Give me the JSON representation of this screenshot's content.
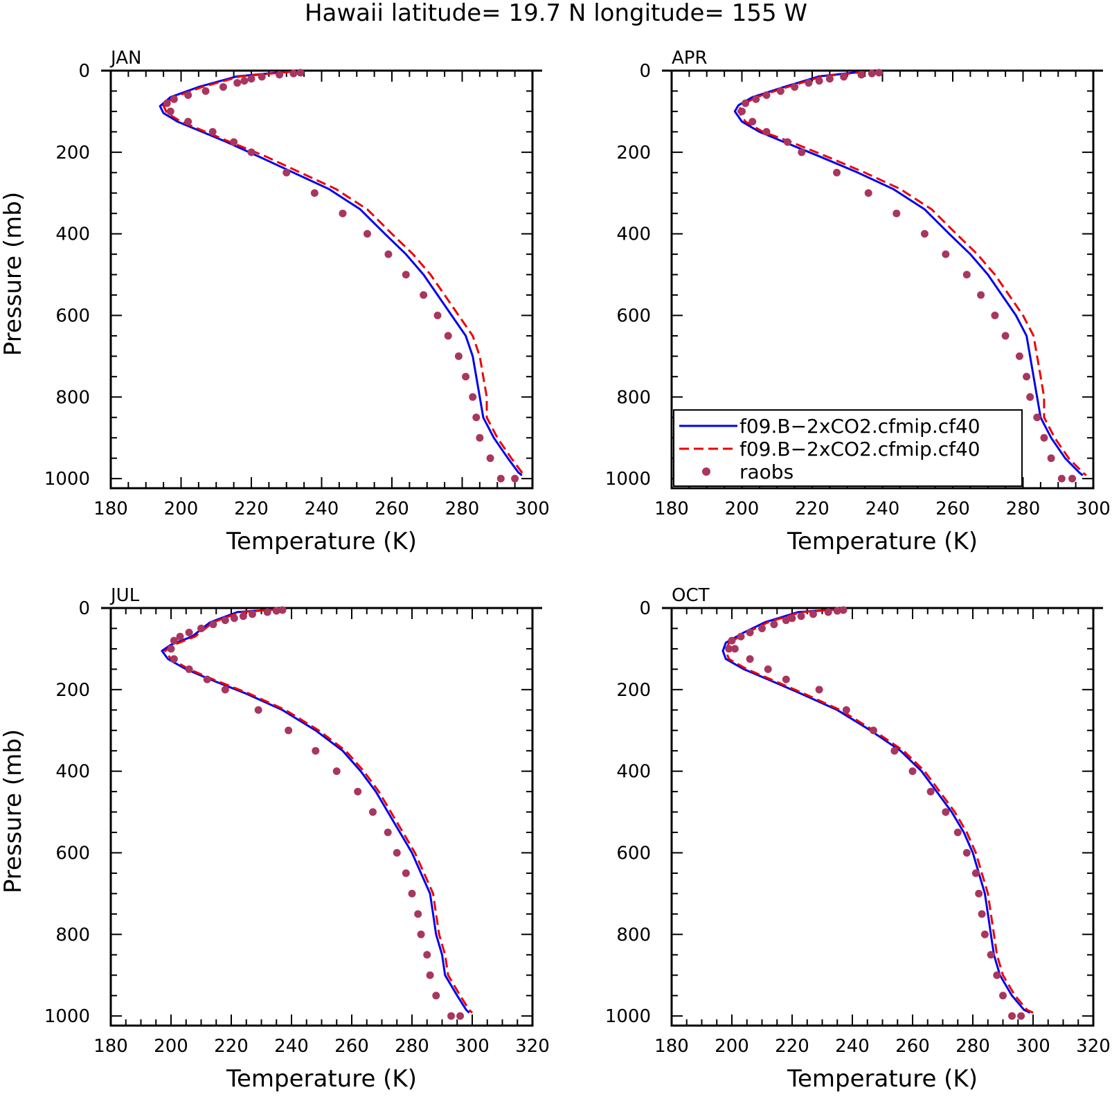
{
  "title": "Hawaii  latitude= 19.7 N longitude= 155 W",
  "colors": {
    "model1": "#0000ee",
    "model2": "#ee0000",
    "obs": "#a8365f",
    "axis": "#000000"
  },
  "legend": {
    "entries": [
      {
        "label": "f09.B−2xCO2.cfmip.cf40",
        "style": "solid",
        "color": "#0000ee"
      },
      {
        "label": "f09.B−2xCO2.cfmip.cf40",
        "style": "dashed",
        "color": "#ee0000"
      },
      {
        "label": "raobs",
        "style": "marker",
        "color": "#a8365f"
      }
    ]
  },
  "chart_data": [
    {
      "type": "line",
      "panel": "JAN",
      "xlabel": "Temperature (K)",
      "ylabel": "Pressure (mb)",
      "xlim": [
        180,
        300
      ],
      "ylim": [
        1000,
        0
      ],
      "xticks": [
        180,
        200,
        220,
        240,
        260,
        280,
        300
      ],
      "yticks": [
        0,
        200,
        400,
        600,
        800,
        1000
      ],
      "series": [
        {
          "name": "f09.B−2xCO2.cfmip.cf40",
          "style": "solid",
          "x": [
            230,
            216,
            205,
            197,
            194,
            195,
            199,
            206,
            213,
            222,
            232,
            242,
            251,
            258,
            264,
            269,
            273,
            277,
            281,
            283,
            284,
            285,
            286,
            289,
            293,
            296,
            297
          ],
          "y": [
            3,
            14,
            40,
            65,
            87,
            104,
            125,
            150,
            175,
            210,
            250,
            290,
            340,
            400,
            450,
            500,
            550,
            600,
            650,
            700,
            750,
            800,
            850,
            900,
            950,
            985,
            992
          ]
        },
        {
          "name": "f09.B−2xCO2.cfmip.cf40",
          "style": "dashed",
          "x": [
            231,
            217,
            206,
            198,
            195,
            196,
            200,
            207,
            214,
            224,
            234,
            244,
            253,
            260,
            266,
            271,
            275,
            279,
            283,
            285,
            286,
            287,
            287,
            290,
            294,
            297,
            298
          ],
          "y": [
            3,
            14,
            40,
            65,
            86,
            104,
            125,
            150,
            175,
            210,
            250,
            290,
            340,
            400,
            450,
            500,
            550,
            600,
            650,
            700,
            750,
            800,
            850,
            900,
            950,
            985,
            992
          ]
        },
        {
          "name": "raobs",
          "style": "marker",
          "x": [
            234,
            232,
            228,
            223,
            220,
            218,
            216,
            212,
            207,
            202,
            198,
            196,
            197,
            202,
            209,
            215,
            220,
            230,
            238,
            246,
            253,
            259,
            264,
            269,
            273,
            276,
            279,
            281,
            283,
            284,
            285,
            288,
            291,
            295
          ],
          "y": [
            5,
            7,
            10,
            15,
            20,
            25,
            30,
            40,
            50,
            60,
            70,
            80,
            100,
            125,
            150,
            175,
            200,
            250,
            300,
            350,
            400,
            450,
            500,
            550,
            600,
            650,
            700,
            750,
            800,
            850,
            900,
            950,
            1000,
            1000
          ]
        }
      ]
    },
    {
      "type": "line",
      "panel": "APR",
      "xlabel": "Temperature (K)",
      "ylabel": "",
      "xlim": [
        180,
        300
      ],
      "ylim": [
        1000,
        0
      ],
      "xticks": [
        180,
        200,
        220,
        240,
        260,
        280,
        300
      ],
      "yticks": [
        0,
        200,
        400,
        600,
        800,
        1000
      ],
      "series": [
        {
          "name": "f09.B−2xCO2.cfmip.cf40",
          "style": "solid",
          "x": [
            234,
            222,
            212,
            203,
            199,
            198,
            200,
            205,
            212,
            222,
            233,
            243,
            252,
            259,
            265,
            270,
            274,
            278,
            281,
            282,
            283,
            284,
            285,
            288,
            292,
            296,
            297
          ],
          "y": [
            3,
            14,
            40,
            65,
            85,
            100,
            125,
            150,
            175,
            210,
            250,
            290,
            340,
            400,
            450,
            500,
            550,
            600,
            650,
            700,
            750,
            800,
            850,
            900,
            950,
            985,
            992
          ]
        },
        {
          "name": "f09.B−2xCO2.cfmip.cf40",
          "style": "dashed",
          "x": [
            235,
            223,
            213,
            204,
            200,
            199,
            201,
            206,
            214,
            224,
            235,
            245,
            254,
            261,
            267,
            272,
            276,
            280,
            283,
            284,
            285,
            286,
            286,
            289,
            293,
            297,
            298
          ],
          "y": [
            3,
            14,
            40,
            65,
            85,
            100,
            125,
            150,
            175,
            210,
            250,
            290,
            340,
            400,
            450,
            500,
            550,
            600,
            650,
            700,
            750,
            800,
            850,
            900,
            950,
            985,
            992
          ]
        },
        {
          "name": "raobs",
          "style": "marker",
          "x": [
            239,
            237,
            234,
            229,
            225,
            222,
            219,
            215,
            211,
            207,
            204,
            201,
            200,
            203,
            207,
            213,
            217,
            227,
            236,
            244,
            252,
            258,
            264,
            268,
            272,
            275,
            279,
            281,
            282,
            284,
            286,
            288,
            291,
            294
          ],
          "y": [
            5,
            7,
            10,
            15,
            20,
            25,
            30,
            40,
            50,
            60,
            70,
            80,
            100,
            125,
            150,
            175,
            200,
            250,
            300,
            350,
            400,
            450,
            500,
            550,
            600,
            650,
            700,
            750,
            800,
            850,
            900,
            950,
            1000,
            1000
          ]
        }
      ]
    },
    {
      "type": "line",
      "panel": "JUL",
      "xlabel": "Temperature (K)",
      "ylabel": "Pressure (mb)",
      "xlim": [
        180,
        320
      ],
      "ylim": [
        1000,
        0
      ],
      "xticks": [
        180,
        200,
        220,
        240,
        260,
        280,
        300,
        320
      ],
      "yticks": [
        0,
        200,
        400,
        600,
        800,
        1000
      ],
      "series": [
        {
          "name": "f09.B−2xCO2.cfmip.cf40",
          "style": "solid",
          "x": [
            235,
            222,
            213,
            207,
            200,
            197,
            199,
            205,
            213,
            225,
            237,
            248,
            257,
            263,
            268,
            272,
            276,
            280,
            283,
            286,
            287,
            288,
            290,
            291,
            295,
            298,
            299
          ],
          "y": [
            3,
            10,
            35,
            70,
            90,
            105,
            125,
            150,
            175,
            210,
            250,
            300,
            350,
            400,
            450,
            500,
            550,
            600,
            650,
            700,
            750,
            800,
            850,
            900,
            950,
            985,
            992
          ]
        },
        {
          "name": "f09.B−2xCO2.cfmip.cf40",
          "style": "dashed",
          "x": [
            236,
            223,
            214,
            208,
            201,
            198,
            200,
            206,
            214,
            226,
            238,
            249,
            258,
            264,
            269,
            273,
            277,
            281,
            284,
            287,
            288,
            289,
            291,
            292,
            296,
            299,
            300
          ],
          "y": [
            3,
            10,
            35,
            70,
            90,
            105,
            125,
            150,
            175,
            210,
            250,
            300,
            350,
            400,
            450,
            500,
            550,
            600,
            650,
            700,
            750,
            800,
            850,
            900,
            950,
            985,
            992
          ]
        },
        {
          "name": "raobs",
          "style": "marker",
          "x": [
            237,
            235,
            232,
            227,
            224,
            221,
            218,
            214,
            210,
            206,
            203,
            201,
            200,
            201,
            206,
            212,
            218,
            229,
            239,
            248,
            255,
            262,
            267,
            272,
            275,
            278,
            280,
            282,
            283,
            285,
            286,
            288,
            293,
            296
          ],
          "y": [
            5,
            7,
            10,
            15,
            20,
            25,
            30,
            40,
            50,
            60,
            70,
            80,
            100,
            125,
            150,
            175,
            200,
            250,
            300,
            350,
            400,
            450,
            500,
            550,
            600,
            650,
            700,
            750,
            800,
            850,
            900,
            950,
            1000,
            1000
          ]
        }
      ]
    },
    {
      "type": "line",
      "panel": "OCT",
      "xlabel": "Temperature (K)",
      "ylabel": "",
      "xlim": [
        180,
        320
      ],
      "ylim": [
        1000,
        0
      ],
      "xticks": [
        180,
        200,
        220,
        240,
        260,
        280,
        300,
        320
      ],
      "yticks": [
        0,
        200,
        400,
        600,
        800,
        1000
      ],
      "series": [
        {
          "name": "f09.B−2xCO2.cfmip.cf40",
          "style": "solid",
          "x": [
            235,
            222,
            211,
            204,
            198,
            197,
            198,
            204,
            212,
            223,
            235,
            246,
            256,
            263,
            268,
            273,
            277,
            280,
            282,
            284,
            285,
            286,
            287,
            289,
            293,
            297,
            299
          ],
          "y": [
            3,
            10,
            35,
            60,
            85,
            105,
            125,
            150,
            175,
            210,
            250,
            300,
            350,
            400,
            450,
            500,
            550,
            600,
            650,
            700,
            750,
            800,
            850,
            900,
            950,
            985,
            992
          ]
        },
        {
          "name": "f09.B−2xCO2.cfmip.cf40",
          "style": "dashed",
          "x": [
            236,
            223,
            212,
            205,
            199,
            198,
            199,
            205,
            213,
            224,
            236,
            247,
            257,
            264,
            269,
            274,
            278,
            281,
            283,
            285,
            286,
            287,
            288,
            290,
            294,
            298,
            300
          ],
          "y": [
            3,
            10,
            35,
            60,
            85,
            105,
            125,
            150,
            175,
            210,
            250,
            300,
            350,
            400,
            450,
            500,
            550,
            600,
            650,
            700,
            750,
            800,
            850,
            900,
            950,
            985,
            992
          ]
        },
        {
          "name": "raobs",
          "style": "marker",
          "x": [
            237,
            235,
            232,
            227,
            223,
            220,
            218,
            214,
            210,
            206,
            203,
            200,
            199,
            201,
            206,
            212,
            218,
            229,
            238,
            247,
            254,
            260,
            266,
            271,
            275,
            278,
            281,
            282,
            283,
            284,
            286,
            288,
            290,
            293,
            296
          ],
          "y": [
            5,
            7,
            10,
            15,
            20,
            25,
            30,
            40,
            50,
            60,
            70,
            80,
            100,
            100,
            125,
            150,
            175,
            200,
            250,
            300,
            350,
            400,
            450,
            500,
            550,
            600,
            650,
            700,
            750,
            800,
            850,
            900,
            950,
            1000,
            1000
          ]
        }
      ]
    }
  ]
}
